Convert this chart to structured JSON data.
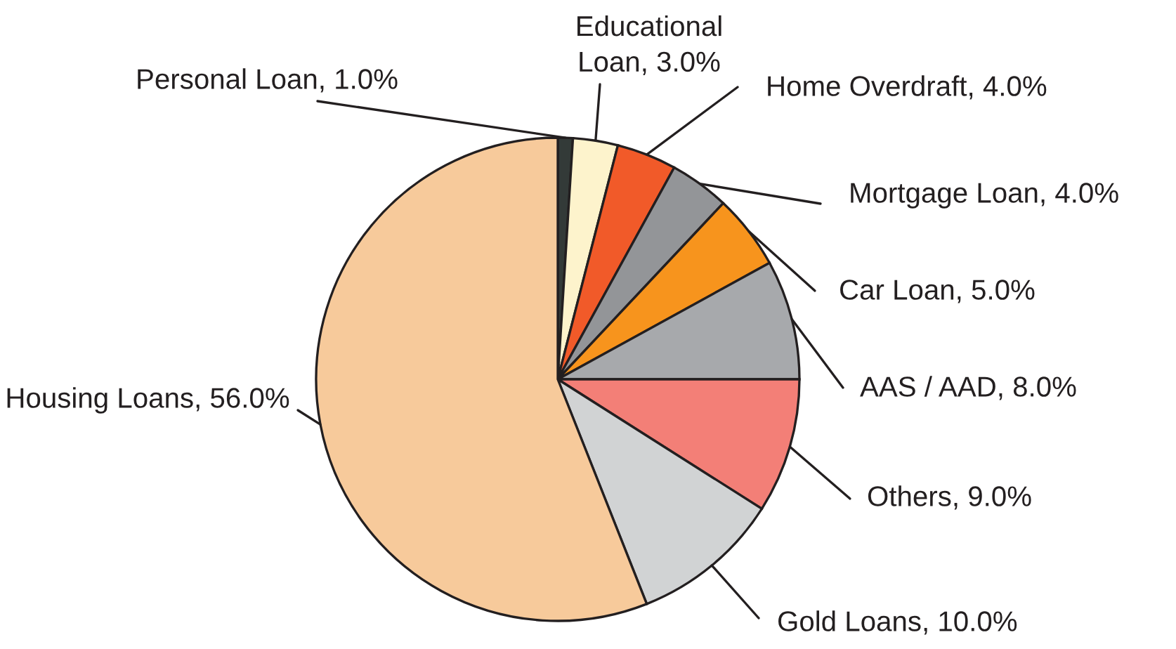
{
  "chart_data": {
    "type": "pie",
    "categories": [
      "Personal Loan",
      "Educational Loan",
      "Home Overdraft",
      "Mortgage Loan",
      "Car Loan",
      "AAS / AAD",
      "Others",
      "Gold Loans",
      "Housing Loans"
    ],
    "values": [
      1.0,
      3.0,
      4.0,
      4.0,
      5.0,
      8.0,
      9.0,
      10.0,
      56.0
    ],
    "value_labels": [
      "1.0%",
      "3.0%",
      "4.0%",
      "4.0%",
      "5.0%",
      "8.0%",
      "9.0%",
      "10.0%",
      "56.0%"
    ],
    "colors": [
      "#333a38",
      "#fdf3cc",
      "#f15a29",
      "#939598",
      "#f7941d",
      "#a7a9ac",
      "#f37f77",
      "#d1d3d4",
      "#f7ca9b"
    ]
  }
}
